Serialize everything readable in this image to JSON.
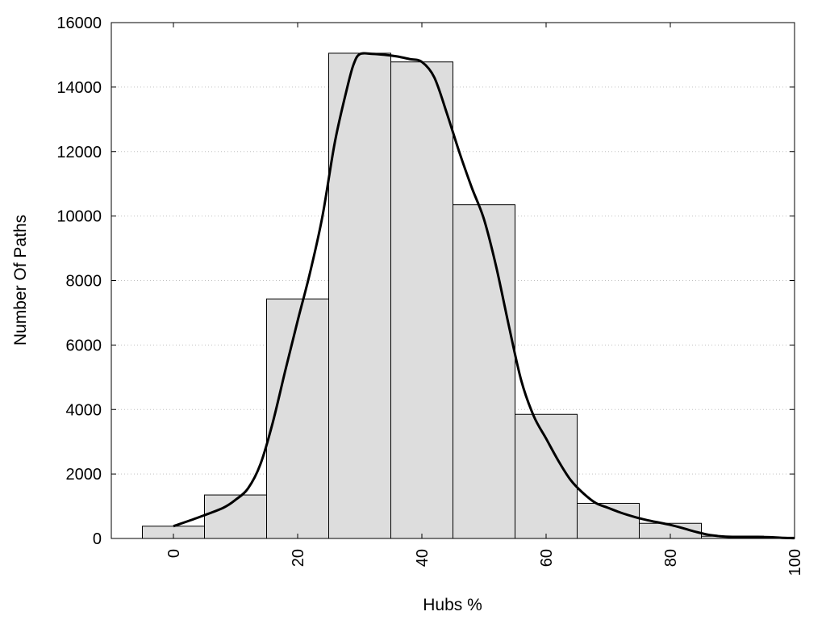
{
  "chart_data": {
    "type": "bar",
    "title": "",
    "xlabel": "Hubs %",
    "ylabel": "Number Of Paths",
    "xlim": [
      -10,
      100
    ],
    "ylim": [
      0,
      16000
    ],
    "x_ticks": [
      0,
      20,
      40,
      60,
      80,
      100
    ],
    "y_ticks": [
      0,
      2000,
      4000,
      6000,
      8000,
      10000,
      12000,
      14000,
      16000
    ],
    "grid": "horizontal dotted",
    "legend": "none",
    "bin_width": 10,
    "bars": [
      {
        "x": 0,
        "value": 380
      },
      {
        "x": 10,
        "value": 1350
      },
      {
        "x": 20,
        "value": 7430
      },
      {
        "x": 30,
        "value": 15050
      },
      {
        "x": 40,
        "value": 14780
      },
      {
        "x": 50,
        "value": 10350
      },
      {
        "x": 60,
        "value": 3850
      },
      {
        "x": 70,
        "value": 1090
      },
      {
        "x": 80,
        "value": 470
      },
      {
        "x": 90,
        "value": 70
      },
      {
        "x": 100,
        "value": 40
      }
    ],
    "curve": {
      "x": [
        0,
        4,
        8,
        10,
        12,
        14,
        16,
        18,
        20,
        22,
        24,
        26,
        28,
        29,
        30,
        32,
        34,
        36,
        38,
        40,
        42,
        44,
        46,
        48,
        50,
        52,
        54,
        56,
        58,
        60,
        62,
        64,
        66,
        68,
        70,
        72,
        74,
        76,
        78,
        80,
        82,
        84,
        86,
        88,
        90,
        92,
        94,
        96,
        98,
        100
      ],
      "y": [
        380,
        650,
        950,
        1200,
        1550,
        2300,
        3600,
        5200,
        6750,
        8250,
        10000,
        12300,
        14000,
        14700,
        15020,
        15030,
        15000,
        14950,
        14870,
        14780,
        14300,
        13200,
        12000,
        10900,
        9900,
        8400,
        6600,
        4900,
        3800,
        3100,
        2400,
        1800,
        1400,
        1100,
        950,
        800,
        680,
        580,
        500,
        420,
        320,
        210,
        120,
        70,
        50,
        50,
        50,
        40,
        20,
        10
      ]
    },
    "colors": {
      "bar_fill": "#dddddd",
      "bar_stroke": "#000000",
      "curve": "#000000",
      "grid": "#c0c0c0",
      "frame": "#000000"
    }
  }
}
